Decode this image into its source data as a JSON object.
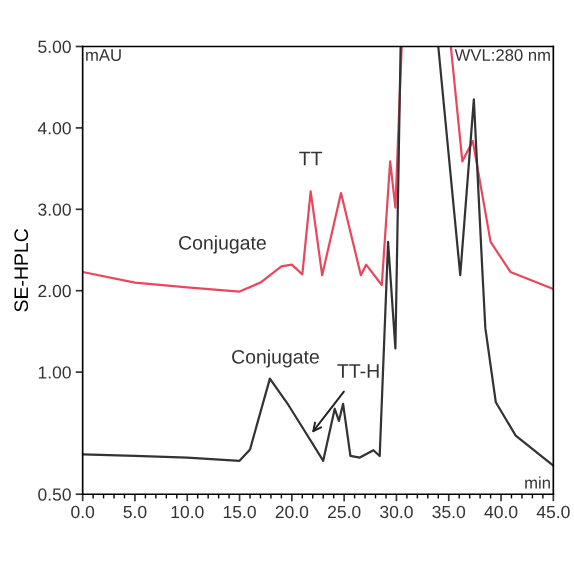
{
  "chart_data": {
    "type": "line",
    "ylabel": "SE-HPLC",
    "xlim": [
      0,
      45
    ],
    "xticks": [
      {
        "value": 0,
        "label": "0.0"
      },
      {
        "value": 5,
        "label": "5.0"
      },
      {
        "value": 10,
        "label": "10.0"
      },
      {
        "value": 15,
        "label": "15.0"
      },
      {
        "value": 20,
        "label": "20.0"
      },
      {
        "value": 25,
        "label": "25.0"
      },
      {
        "value": 30,
        "label": "30.0"
      },
      {
        "value": 35,
        "label": "35.0"
      },
      {
        "value": 40,
        "label": "40.0"
      },
      {
        "value": 45,
        "label": "45.0"
      }
    ],
    "ylim": [
      -0.5,
      5
    ],
    "yticks": [
      {
        "value": -0.5,
        "label": "0.50"
      },
      {
        "value": 1,
        "label": "1.00"
      },
      {
        "value": 2,
        "label": "2.00"
      },
      {
        "value": 3,
        "label": "3.00"
      },
      {
        "value": 4,
        "label": "4.00"
      },
      {
        "value": 5,
        "label": "5.00"
      }
    ],
    "grid": false,
    "legend": false,
    "marker": "none",
    "line_style": "solid",
    "series": [
      {
        "color": "#e8485f",
        "x": [
          0,
          5,
          10,
          15,
          17,
          19,
          20,
          21,
          21.8,
          22.9,
          24.7,
          26.6,
          27.1,
          28.6,
          29.4,
          29.9,
          30.5,
          32,
          35.2,
          36.3,
          37.3,
          39.0,
          40.9,
          45
        ],
        "values": [
          2.23,
          2.1,
          2.04,
          1.99,
          2.1,
          2.3,
          2.32,
          2.2,
          3.22,
          2.19,
          3.2,
          2.19,
          2.32,
          2.07,
          3.59,
          3.02,
          5.0,
          null,
          5.0,
          3.59,
          3.84,
          2.6,
          2.23,
          2.02
        ]
      },
      {
        "color": "#333333",
        "x": [
          0,
          5,
          10,
          15,
          16,
          17.9,
          19.7,
          21.6,
          23.0,
          24.1,
          24.5,
          24.9,
          25.6,
          26.5,
          27.8,
          28.4,
          29.2,
          29.9,
          30.4,
          32,
          34.0,
          36.1,
          37.4,
          38.2,
          38.5,
          39.5,
          41.4,
          45
        ],
        "values": [
          -0.01,
          -0.03,
          -0.05,
          -0.09,
          0.05,
          0.92,
          0.59,
          0.2,
          -0.09,
          0.55,
          0.4,
          0.61,
          -0.03,
          -0.05,
          0.04,
          -0.03,
          2.6,
          1.29,
          5.0,
          null,
          5.0,
          2.19,
          4.35,
          2.28,
          1.54,
          0.63,
          0.22,
          -0.15
        ]
      }
    ],
    "annotations": [
      "mAU",
      "WVL:280 nm",
      "min",
      {
        "text": "TT",
        "x": 21.8,
        "y": 3.22
      },
      {
        "text": "Conjugate",
        "x": 20,
        "y": 2.32
      },
      {
        "text": "Conjugate",
        "x": 17.9,
        "y": 0.92
      },
      {
        "text": "TT-H",
        "x": 21.6,
        "y": 0.2
      }
    ]
  }
}
